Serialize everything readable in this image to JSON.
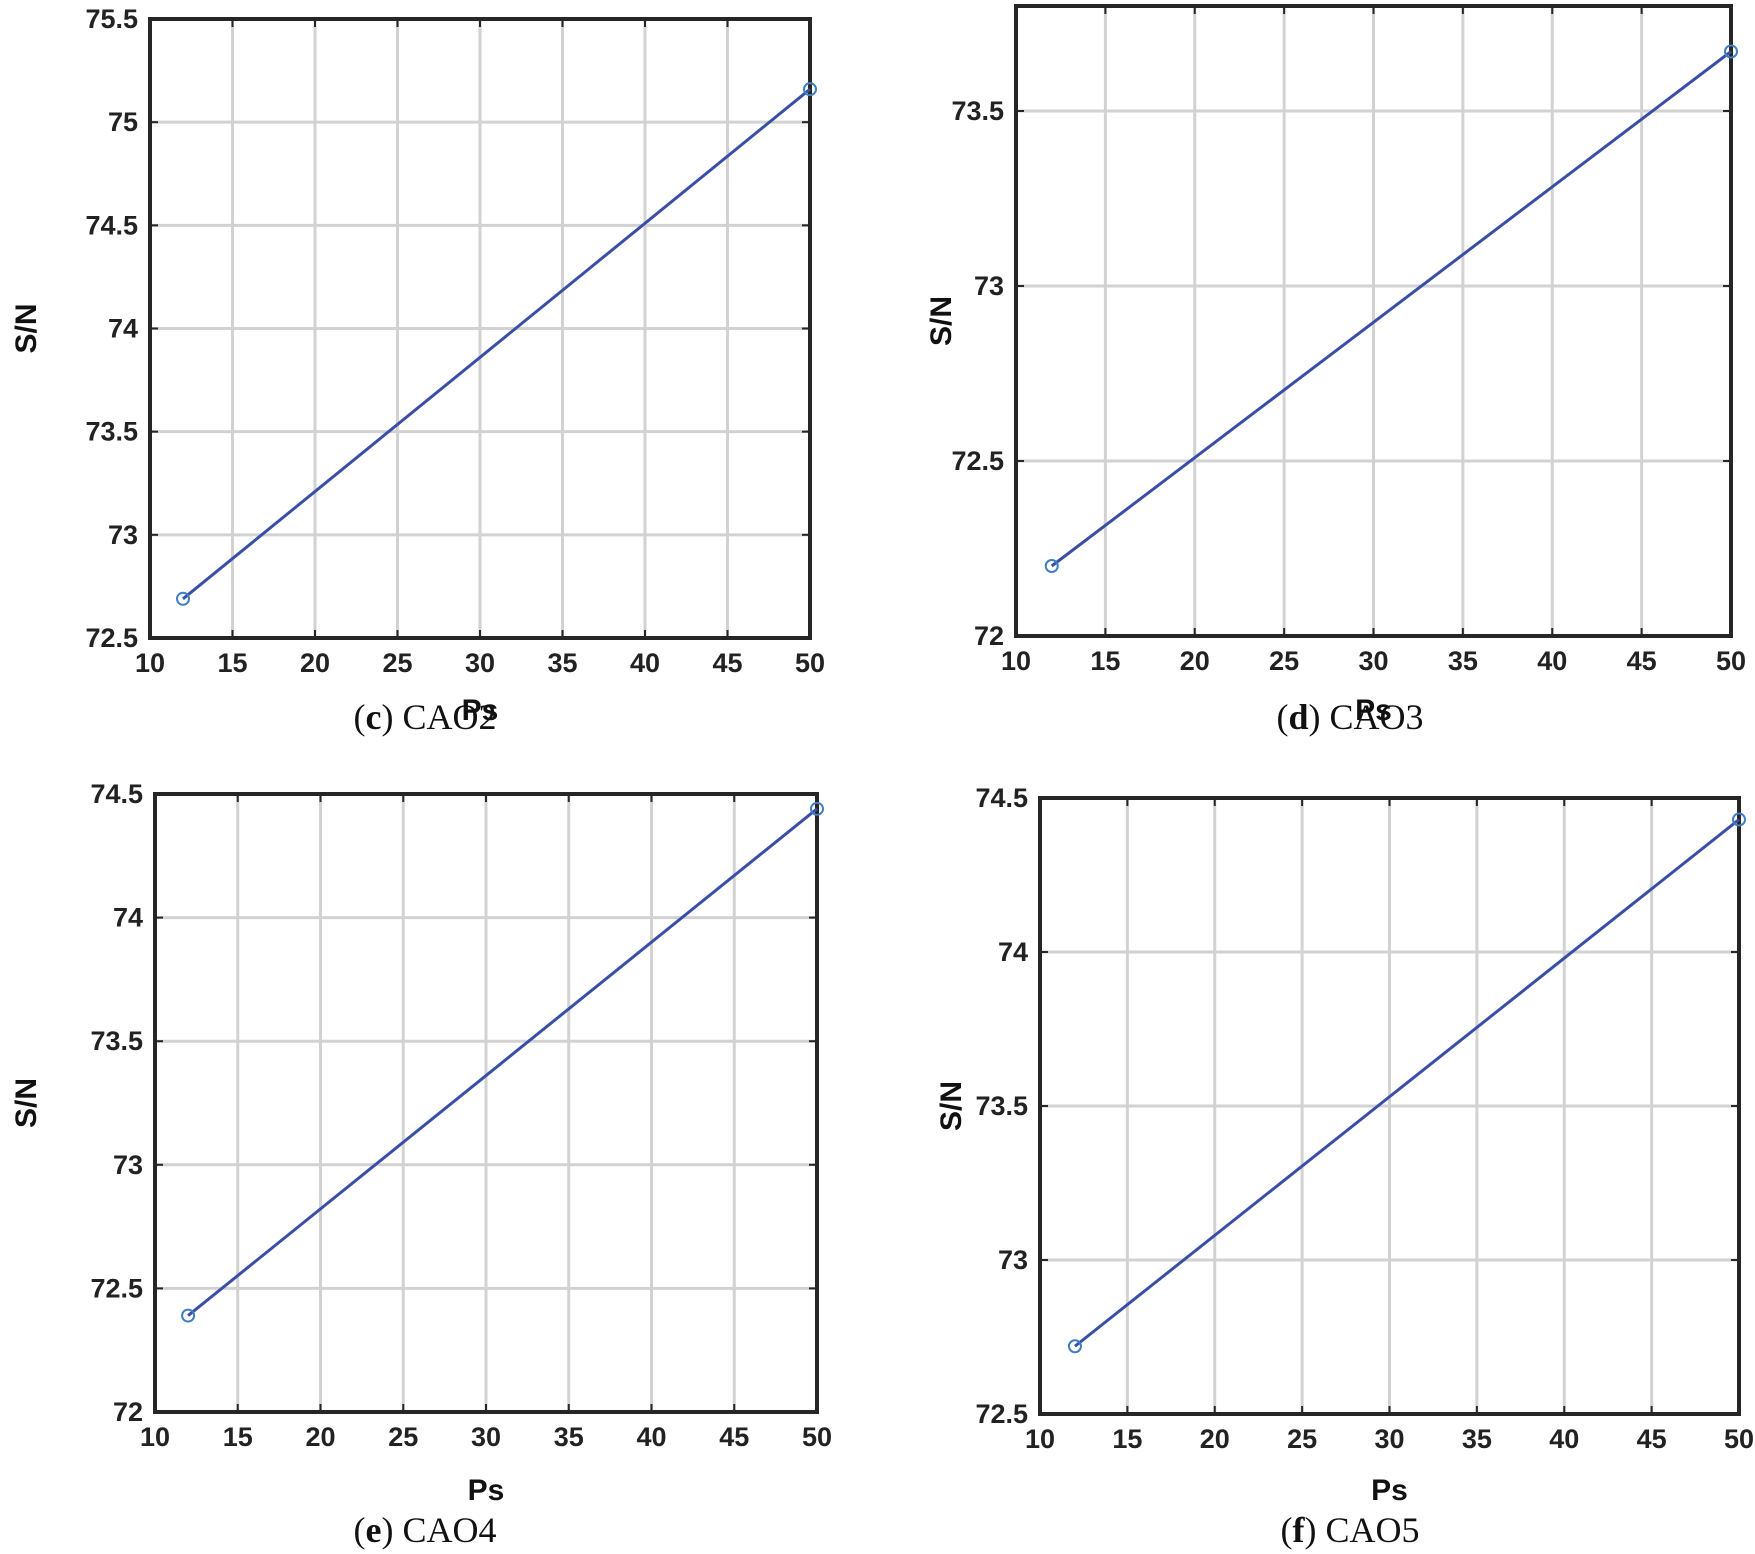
{
  "colors": {
    "line": "#3a4ea6",
    "marker": "#3d7fc1",
    "grid": "#d2d2d2",
    "frame": "#262626"
  },
  "chart_data": [
    {
      "type": "line",
      "caption_letter": "c",
      "caption_text": "CAO2",
      "xlabel": "Ps",
      "ylabel": "S/N",
      "xlim": [
        10,
        50
      ],
      "ylim": [
        72.5,
        75.5
      ],
      "xticks": [
        10,
        15,
        20,
        25,
        30,
        35,
        40,
        45,
        50
      ],
      "yticks": [
        72.5,
        73,
        73.5,
        74,
        74.5,
        75,
        75.5
      ],
      "xtick_labels": [
        "10",
        "15",
        "20",
        "25",
        "30",
        "35",
        "40",
        "45",
        "50"
      ],
      "ytick_labels": [
        "72.5",
        "73",
        "73.5",
        "74",
        "74.5",
        "75",
        "75.5"
      ],
      "grid": true,
      "marker": "circle",
      "x": [
        12,
        50
      ],
      "y": [
        72.69,
        75.16
      ]
    },
    {
      "type": "line",
      "caption_letter": "d",
      "caption_text": "CAO3",
      "xlabel": "Ps",
      "ylabel": "S/N",
      "xlim": [
        10,
        50
      ],
      "ylim": [
        72,
        73.8
      ],
      "xticks": [
        10,
        15,
        20,
        25,
        30,
        35,
        40,
        45,
        50
      ],
      "yticks": [
        72,
        72.5,
        73,
        73.5
      ],
      "xtick_labels": [
        "10",
        "15",
        "20",
        "25",
        "30",
        "35",
        "40",
        "45",
        "50"
      ],
      "ytick_labels": [
        "72",
        "72.5",
        "73",
        "73.5"
      ],
      "grid": true,
      "marker": "circle",
      "x": [
        12,
        50
      ],
      "y": [
        72.2,
        73.67
      ]
    },
    {
      "type": "line",
      "caption_letter": "e",
      "caption_text": "CAO4",
      "xlabel": "Ps",
      "ylabel": "S/N",
      "xlim": [
        10,
        50
      ],
      "ylim": [
        72,
        74.5
      ],
      "xticks": [
        10,
        15,
        20,
        25,
        30,
        35,
        40,
        45,
        50
      ],
      "yticks": [
        72,
        72.5,
        73,
        73.5,
        74,
        74.5
      ],
      "xtick_labels": [
        "10",
        "15",
        "20",
        "25",
        "30",
        "35",
        "40",
        "45",
        "50"
      ],
      "ytick_labels": [
        "72",
        "72.5",
        "73",
        "73.5",
        "74",
        "74.5"
      ],
      "grid": true,
      "marker": "circle",
      "x": [
        12,
        50
      ],
      "y": [
        72.39,
        74.44
      ]
    },
    {
      "type": "line",
      "caption_letter": "f",
      "caption_text": "CAO5",
      "xlabel": "Ps",
      "ylabel": "S/N",
      "xlim": [
        10,
        50
      ],
      "ylim": [
        72.5,
        74.5
      ],
      "xticks": [
        10,
        15,
        20,
        25,
        30,
        35,
        40,
        45,
        50
      ],
      "yticks": [
        72.5,
        73,
        73.5,
        74,
        74.5
      ],
      "xtick_labels": [
        "10",
        "15",
        "20",
        "25",
        "30",
        "35",
        "40",
        "45",
        "50"
      ],
      "ytick_labels": [
        "72.5",
        "73",
        "73.5",
        "74",
        "74.5"
      ],
      "grid": true,
      "marker": "circle",
      "x": [
        12,
        50
      ],
      "y": [
        72.72,
        74.43
      ]
    }
  ]
}
